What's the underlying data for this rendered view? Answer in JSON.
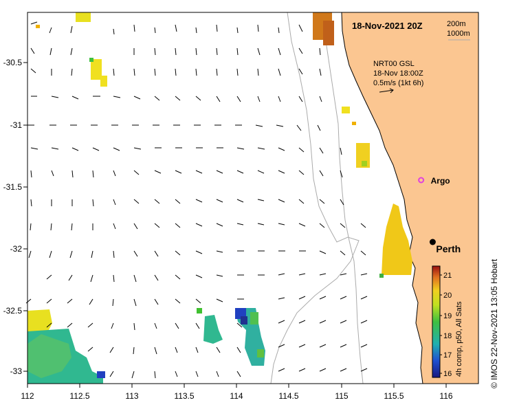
{
  "title": "18-Nov-2021 20Z",
  "depth_legend": {
    "line1": "200m",
    "line2": "1000m"
  },
  "current_info": {
    "product": "NRT00 GSL",
    "time": "18-Nov 18:00Z",
    "scale": "0.5m/s (1kt 6h)"
  },
  "places": [
    {
      "name": "Argo",
      "lon": 115.75,
      "lat": -31.45,
      "kind": "float"
    },
    {
      "name": "Perth",
      "lon": 115.86,
      "lat": -31.95,
      "kind": "city"
    }
  ],
  "axes": {
    "x_ticks": [
      "112",
      "112.5",
      "113",
      "113.5",
      "114",
      "114.5",
      "115",
      "115.5",
      "116"
    ],
    "y_ticks": [
      "-30.5",
      "-31",
      "-31.5",
      "-32",
      "-32.5",
      "-33"
    ],
    "x_range": [
      112,
      116.3
    ],
    "y_range": [
      -33.1,
      -30.0
    ]
  },
  "colorbar": {
    "label": "4h comp, p50, All Sats",
    "ticks": [
      "21",
      "20",
      "19",
      "18",
      "17",
      "16"
    ],
    "range": [
      16,
      21
    ]
  },
  "credit": "© IMOS 22-Nov-2021 13:05 Hobart",
  "colors": {
    "land": "#fbc691",
    "arrow": "#000000",
    "isobath": "#aaaaaa",
    "argo": "#e040e0"
  }
}
